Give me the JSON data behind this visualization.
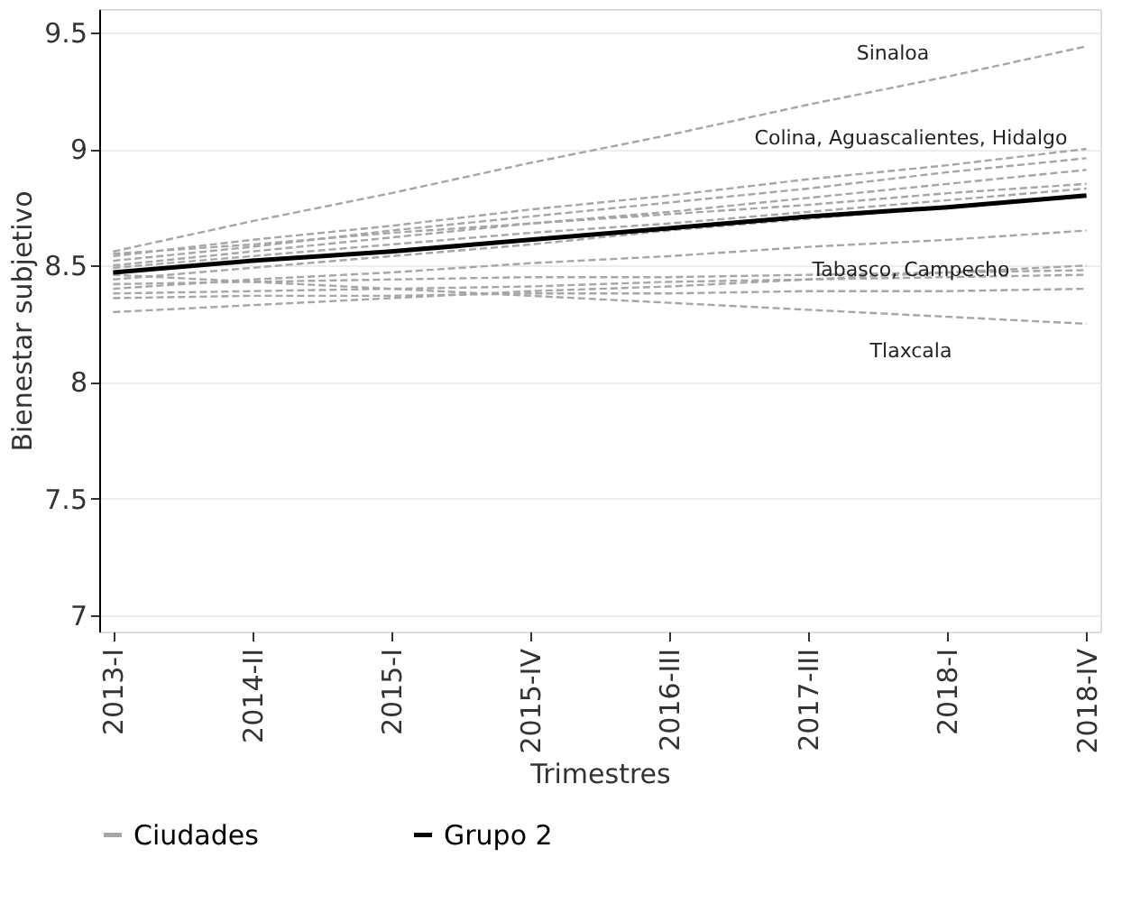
{
  "chart_data": {
    "type": "line",
    "xlabel": "Trimestres",
    "ylabel": "Bienestar subjetivo",
    "categories": [
      "2013-I",
      "2014-II",
      "2015-I",
      "2015-IV",
      "2016-III",
      "2017-III",
      "2018-I",
      "2018-IV"
    ],
    "ylim": [
      6.93,
      9.6
    ],
    "yticks": [
      7,
      7.5,
      8,
      8.5,
      9,
      9.5
    ],
    "grid": "y",
    "legend": "bottom",
    "series": [
      {
        "name": "Ciudades",
        "color": "#a6a6a6",
        "line_style": "dashed",
        "values": [
          8.56,
          8.69,
          8.81,
          8.94,
          9.06,
          9.19,
          9.31,
          9.44
        ]
      },
      {
        "color": "#a6a6a6",
        "line_style": "dashed",
        "values": [
          8.54,
          8.61,
          8.67,
          8.74,
          8.8,
          8.87,
          8.93,
          9.0
        ]
      },
      {
        "color": "#a6a6a6",
        "line_style": "dashed",
        "values": [
          8.52,
          8.58,
          8.65,
          8.71,
          8.77,
          8.83,
          8.9,
          8.96
        ]
      },
      {
        "color": "#a6a6a6",
        "line_style": "dashed",
        "values": [
          8.5,
          8.56,
          8.62,
          8.68,
          8.73,
          8.79,
          8.85,
          8.91
        ]
      },
      {
        "color": "#a6a6a6",
        "line_style": "dashed",
        "values": [
          8.55,
          8.59,
          8.64,
          8.68,
          8.72,
          8.76,
          8.81,
          8.85
        ]
      },
      {
        "color": "#a6a6a6",
        "line_style": "dashed",
        "values": [
          8.49,
          8.54,
          8.59,
          8.64,
          8.68,
          8.73,
          8.78,
          8.83
        ]
      },
      {
        "color": "#a6a6a6",
        "line_style": "dashed",
        "values": [
          8.44,
          8.49,
          8.54,
          8.59,
          8.65,
          8.7,
          8.75,
          8.8
        ]
      },
      {
        "color": "#a6a6a6",
        "line_style": "dashed",
        "values": [
          8.4,
          8.44,
          8.47,
          8.51,
          8.54,
          8.58,
          8.61,
          8.65
        ]
      },
      {
        "color": "#a6a6a6",
        "line_style": "dashed",
        "values": [
          8.42,
          8.43,
          8.44,
          8.45,
          8.45,
          8.46,
          8.47,
          8.48
        ]
      },
      {
        "color": "#a6a6a6",
        "line_style": "dashed",
        "values": [
          8.38,
          8.39,
          8.4,
          8.41,
          8.43,
          8.44,
          8.45,
          8.46
        ]
      },
      {
        "color": "#a6a6a6",
        "line_style": "dashed",
        "values": [
          8.46,
          8.43,
          8.4,
          8.37,
          8.34,
          8.31,
          8.28,
          8.25
        ]
      },
      {
        "color": "#a6a6a6",
        "line_style": "dashed",
        "values": [
          8.3,
          8.33,
          8.36,
          8.39,
          8.41,
          8.44,
          8.47,
          8.5
        ]
      },
      {
        "color": "#a6a6a6",
        "line_style": "dashed",
        "values": [
          8.36,
          8.37,
          8.37,
          8.38,
          8.38,
          8.39,
          8.39,
          8.4
        ]
      },
      {
        "name": "Grupo 2",
        "color": "#000000",
        "line_style": "solid",
        "values": [
          8.47,
          8.52,
          8.56,
          8.61,
          8.66,
          8.71,
          8.75,
          8.8
        ]
      }
    ],
    "annotations": [
      "Sinaloa",
      "Colina, Aguascalientes, Hidalgo",
      "Tabasco, Campecho",
      "Tlaxcala"
    ]
  }
}
